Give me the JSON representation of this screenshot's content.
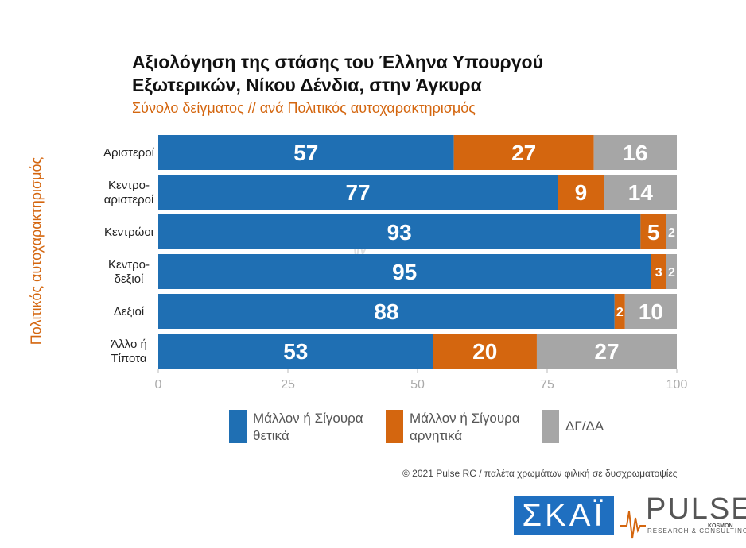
{
  "title": "Αξιολόγηση της στάσης του Έλληνα Υπουργού Εξωτερικών, Νίκου Δένδια, στην Άγκυρα",
  "subtitle": "Σύνολο δείγματος // ανά Πολιτικός αυτοχαρακτηρισμός",
  "colors": {
    "positive": "#1f6fb3",
    "negative": "#d4660f",
    "unknown": "#a6a6a6",
    "accent": "#d4660f"
  },
  "chart_data": {
    "type": "bar",
    "orientation": "horizontal",
    "stacked": true,
    "ylabel": "Πολιτικός αυτοχαρακτηρισμός",
    "xlabel": "",
    "xlim": [
      0,
      100
    ],
    "xticks": [
      "0",
      "25",
      "50",
      "75",
      "100"
    ],
    "categories": [
      [
        "Αριστεροί"
      ],
      [
        "Κεντρο-",
        "αριστεροί"
      ],
      [
        "Κεντρώοι"
      ],
      [
        "Κεντρο-",
        "δεξιοί"
      ],
      [
        "Δεξιοί"
      ],
      [
        "Άλλο ή",
        "Τίποτα"
      ]
    ],
    "series": [
      {
        "name": "Μάλλον ή Σίγουρα θετικά",
        "values": [
          57,
          77,
          93,
          95,
          88,
          53
        ]
      },
      {
        "name": "Μάλλον ή Σίγουρα αρνητικά",
        "values": [
          27,
          9,
          5,
          3,
          2,
          20
        ]
      },
      {
        "name": "ΔΓ/ΔΑ",
        "values": [
          16,
          14,
          2,
          2,
          10,
          27
        ]
      }
    ],
    "legend_position": "bottom",
    "grid": false
  },
  "legend": [
    {
      "lines": [
        "Μάλλον ή Σίγουρα",
        "θετικά"
      ]
    },
    {
      "lines": [
        "Μάλλον ή Σίγουρα",
        "αρνητικά"
      ]
    },
    {
      "lines": [
        "ΔΓ/ΔΑ"
      ]
    }
  ],
  "copyright": "© 2021 Pulse RC  /  παλέτα χρωμάτων φιλική σε δυσχρωματοψίες",
  "logos": {
    "skai": "ΣΚΑΪ",
    "pulse": "PULSE",
    "pulse_sub": "RESEARCH & CONSULTING",
    "pulse_kosmon": "KOSMON"
  }
}
